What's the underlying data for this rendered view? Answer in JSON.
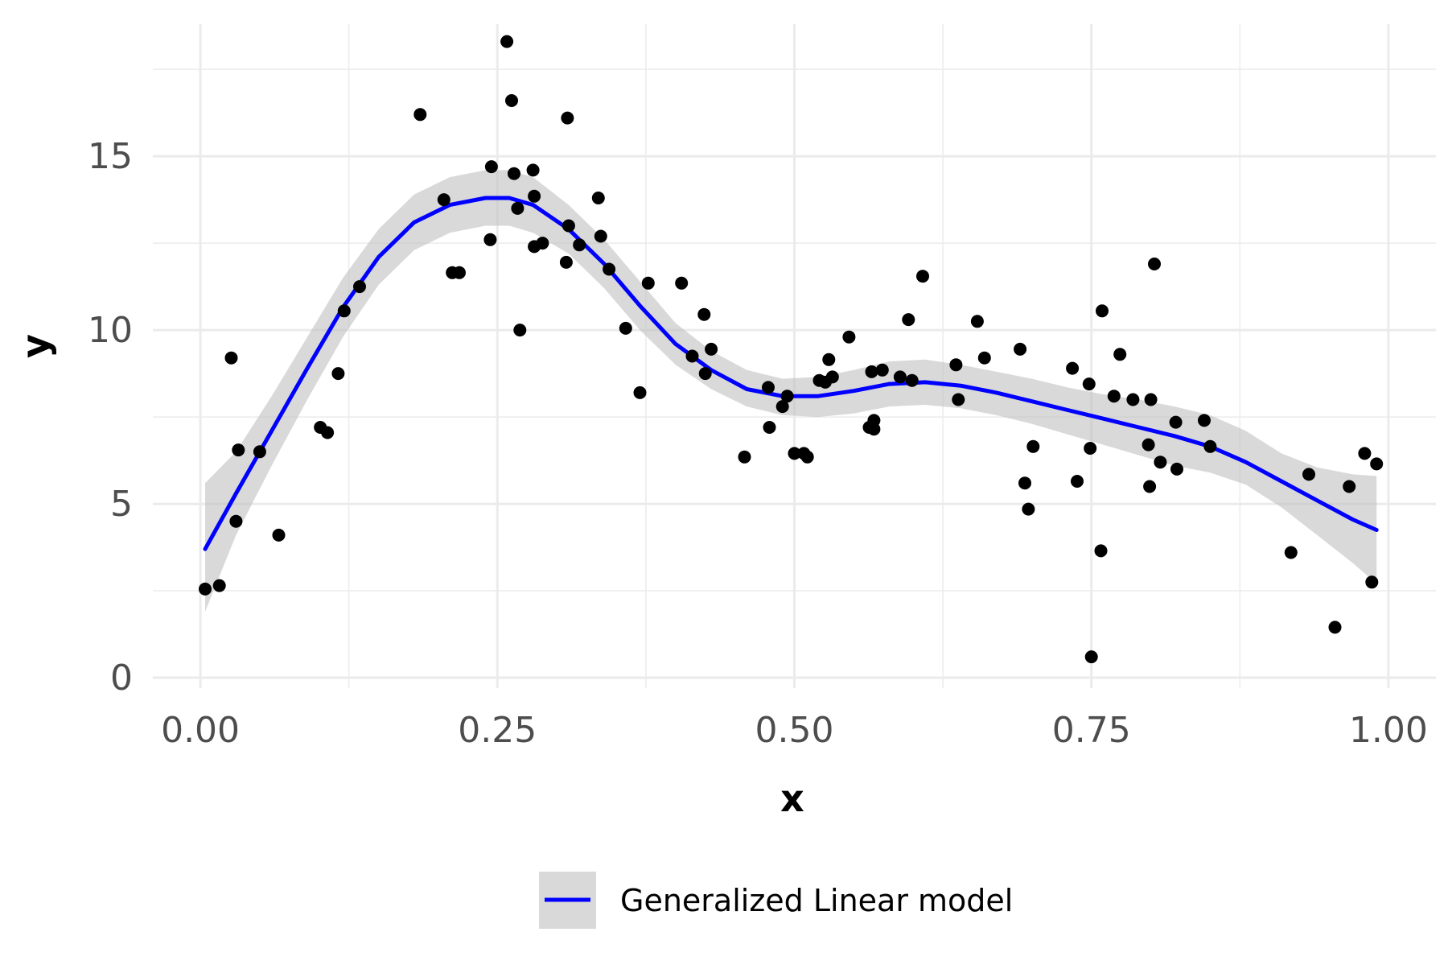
{
  "chart_data": {
    "type": "scatter",
    "title": "",
    "xlabel": "x",
    "ylabel": "y",
    "xlim": [
      -0.04,
      1.04
    ],
    "ylim": [
      -0.3,
      18.8
    ],
    "x_ticks": [
      0.0,
      0.25,
      0.5,
      0.75,
      1.0
    ],
    "x_tick_labels": [
      "0.00",
      "0.25",
      "0.50",
      "0.75",
      "1.00"
    ],
    "y_ticks": [
      0,
      5,
      10,
      15
    ],
    "y_tick_labels": [
      "0",
      "5",
      "10",
      "15"
    ],
    "grid": true,
    "legend": {
      "position": "bottom",
      "entries": [
        {
          "label": "Generalized Linear model",
          "color": "#0000ff",
          "band_color": "#d9d9d9"
        }
      ]
    },
    "colors": {
      "points": "#000000",
      "fit_line": "#0000ff",
      "confidence_band": "#bfbfbf"
    },
    "series": [
      {
        "kind": "points",
        "points": [
          [
            0.004,
            2.55
          ],
          [
            0.016,
            2.65
          ],
          [
            0.026,
            9.2
          ],
          [
            0.03,
            4.5
          ],
          [
            0.032,
            6.55
          ],
          [
            0.05,
            6.5
          ],
          [
            0.066,
            4.1
          ],
          [
            0.101,
            7.2
          ],
          [
            0.107,
            7.05
          ],
          [
            0.116,
            8.75
          ],
          [
            0.121,
            10.55
          ],
          [
            0.134,
            11.25
          ],
          [
            0.185,
            16.2
          ],
          [
            0.205,
            13.75
          ],
          [
            0.212,
            11.65
          ],
          [
            0.218,
            11.65
          ],
          [
            0.244,
            12.6
          ],
          [
            0.245,
            14.7
          ],
          [
            0.258,
            18.3
          ],
          [
            0.262,
            16.6
          ],
          [
            0.264,
            14.5
          ],
          [
            0.267,
            13.5
          ],
          [
            0.269,
            10.0
          ],
          [
            0.28,
            14.6
          ],
          [
            0.281,
            13.85
          ],
          [
            0.281,
            12.4
          ],
          [
            0.288,
            12.5
          ],
          [
            0.308,
            11.95
          ],
          [
            0.309,
            16.1
          ],
          [
            0.31,
            13.0
          ],
          [
            0.319,
            12.45
          ],
          [
            0.335,
            13.8
          ],
          [
            0.337,
            12.7
          ],
          [
            0.344,
            11.75
          ],
          [
            0.358,
            10.05
          ],
          [
            0.37,
            8.2
          ],
          [
            0.377,
            11.35
          ],
          [
            0.405,
            11.35
          ],
          [
            0.414,
            9.25
          ],
          [
            0.424,
            10.45
          ],
          [
            0.425,
            8.75
          ],
          [
            0.43,
            9.45
          ],
          [
            0.458,
            6.35
          ],
          [
            0.478,
            8.35
          ],
          [
            0.479,
            7.2
          ],
          [
            0.49,
            7.8
          ],
          [
            0.494,
            8.1
          ],
          [
            0.5,
            6.45
          ],
          [
            0.508,
            6.45
          ],
          [
            0.511,
            6.35
          ],
          [
            0.521,
            8.55
          ],
          [
            0.526,
            8.5
          ],
          [
            0.529,
            9.15
          ],
          [
            0.532,
            8.65
          ],
          [
            0.546,
            9.8
          ],
          [
            0.563,
            7.2
          ],
          [
            0.565,
            8.8
          ],
          [
            0.567,
            7.15
          ],
          [
            0.567,
            7.4
          ],
          [
            0.574,
            8.85
          ],
          [
            0.589,
            8.65
          ],
          [
            0.596,
            10.3
          ],
          [
            0.599,
            8.55
          ],
          [
            0.608,
            11.55
          ],
          [
            0.636,
            9.0
          ],
          [
            0.638,
            8.0
          ],
          [
            0.654,
            10.25
          ],
          [
            0.66,
            9.2
          ],
          [
            0.69,
            9.45
          ],
          [
            0.694,
            5.6
          ],
          [
            0.697,
            4.85
          ],
          [
            0.701,
            6.65
          ],
          [
            0.734,
            8.9
          ],
          [
            0.738,
            5.65
          ],
          [
            0.748,
            8.45
          ],
          [
            0.749,
            6.6
          ],
          [
            0.75,
            0.6
          ],
          [
            0.758,
            3.65
          ],
          [
            0.759,
            10.55
          ],
          [
            0.769,
            8.1
          ],
          [
            0.774,
            9.3
          ],
          [
            0.785,
            8.0
          ],
          [
            0.798,
            6.7
          ],
          [
            0.799,
            5.5
          ],
          [
            0.8,
            8.0
          ],
          [
            0.803,
            11.9
          ],
          [
            0.808,
            6.2
          ],
          [
            0.821,
            7.35
          ],
          [
            0.822,
            6.0
          ],
          [
            0.845,
            7.4
          ],
          [
            0.85,
            6.65
          ],
          [
            0.918,
            3.6
          ],
          [
            0.933,
            5.85
          ],
          [
            0.955,
            1.45
          ],
          [
            0.967,
            5.5
          ],
          [
            0.98,
            6.45
          ],
          [
            0.986,
            2.75
          ],
          [
            0.99,
            6.15
          ]
        ]
      },
      {
        "kind": "fit",
        "name": "Generalized Linear model",
        "x": [
          0.004,
          0.03,
          0.06,
          0.09,
          0.12,
          0.15,
          0.18,
          0.21,
          0.24,
          0.26,
          0.28,
          0.31,
          0.34,
          0.37,
          0.4,
          0.43,
          0.46,
          0.49,
          0.52,
          0.55,
          0.58,
          0.61,
          0.64,
          0.67,
          0.7,
          0.73,
          0.76,
          0.79,
          0.82,
          0.85,
          0.88,
          0.91,
          0.94,
          0.97,
          0.99
        ],
        "y": [
          3.7,
          5.3,
          7.1,
          8.9,
          10.65,
          12.1,
          13.1,
          13.6,
          13.8,
          13.8,
          13.6,
          12.9,
          11.9,
          10.7,
          9.6,
          8.85,
          8.3,
          8.1,
          8.1,
          8.25,
          8.45,
          8.5,
          8.4,
          8.2,
          7.95,
          7.7,
          7.45,
          7.2,
          6.95,
          6.65,
          6.2,
          5.65,
          5.1,
          4.55,
          4.25
        ],
        "lower": [
          1.9,
          4.1,
          6.1,
          8.0,
          9.8,
          11.3,
          12.3,
          12.8,
          13.0,
          13.0,
          12.8,
          12.2,
          11.2,
          10.0,
          9.0,
          8.3,
          7.8,
          7.55,
          7.5,
          7.6,
          7.8,
          7.85,
          7.75,
          7.55,
          7.3,
          7.0,
          6.7,
          6.4,
          6.1,
          5.9,
          5.55,
          4.9,
          4.1,
          3.3,
          2.7
        ],
        "upper": [
          5.6,
          6.5,
          8.1,
          9.8,
          11.5,
          12.9,
          13.9,
          14.4,
          14.6,
          14.6,
          14.4,
          13.6,
          12.6,
          11.4,
          10.2,
          9.4,
          8.85,
          8.6,
          8.65,
          8.85,
          9.1,
          9.15,
          9.0,
          8.8,
          8.6,
          8.35,
          8.15,
          8.0,
          7.8,
          7.55,
          7.1,
          6.45,
          6.05,
          5.85,
          5.8
        ]
      }
    ]
  }
}
